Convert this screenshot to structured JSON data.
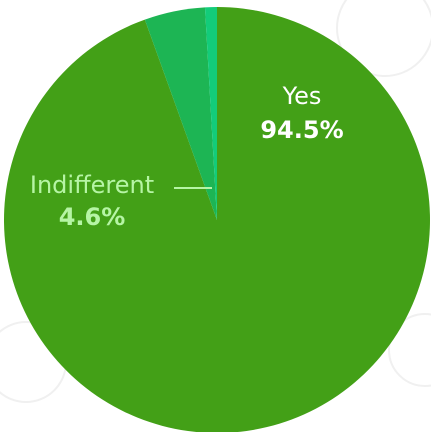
{
  "chart_data": {
    "type": "pie",
    "title": "",
    "slices": [
      {
        "name": "Yes",
        "value": 94.5,
        "label": "94.5%",
        "color": "#43a017"
      },
      {
        "name": "Indifferent",
        "value": 4.6,
        "label": "4.6%",
        "color": "#1db554"
      },
      {
        "name": "",
        "value": 0.9,
        "label": "",
        "color": "#13cc7a"
      }
    ],
    "label_colors": {
      "Yes": "#ffffff",
      "Indifferent": "#b6f5a5"
    }
  }
}
